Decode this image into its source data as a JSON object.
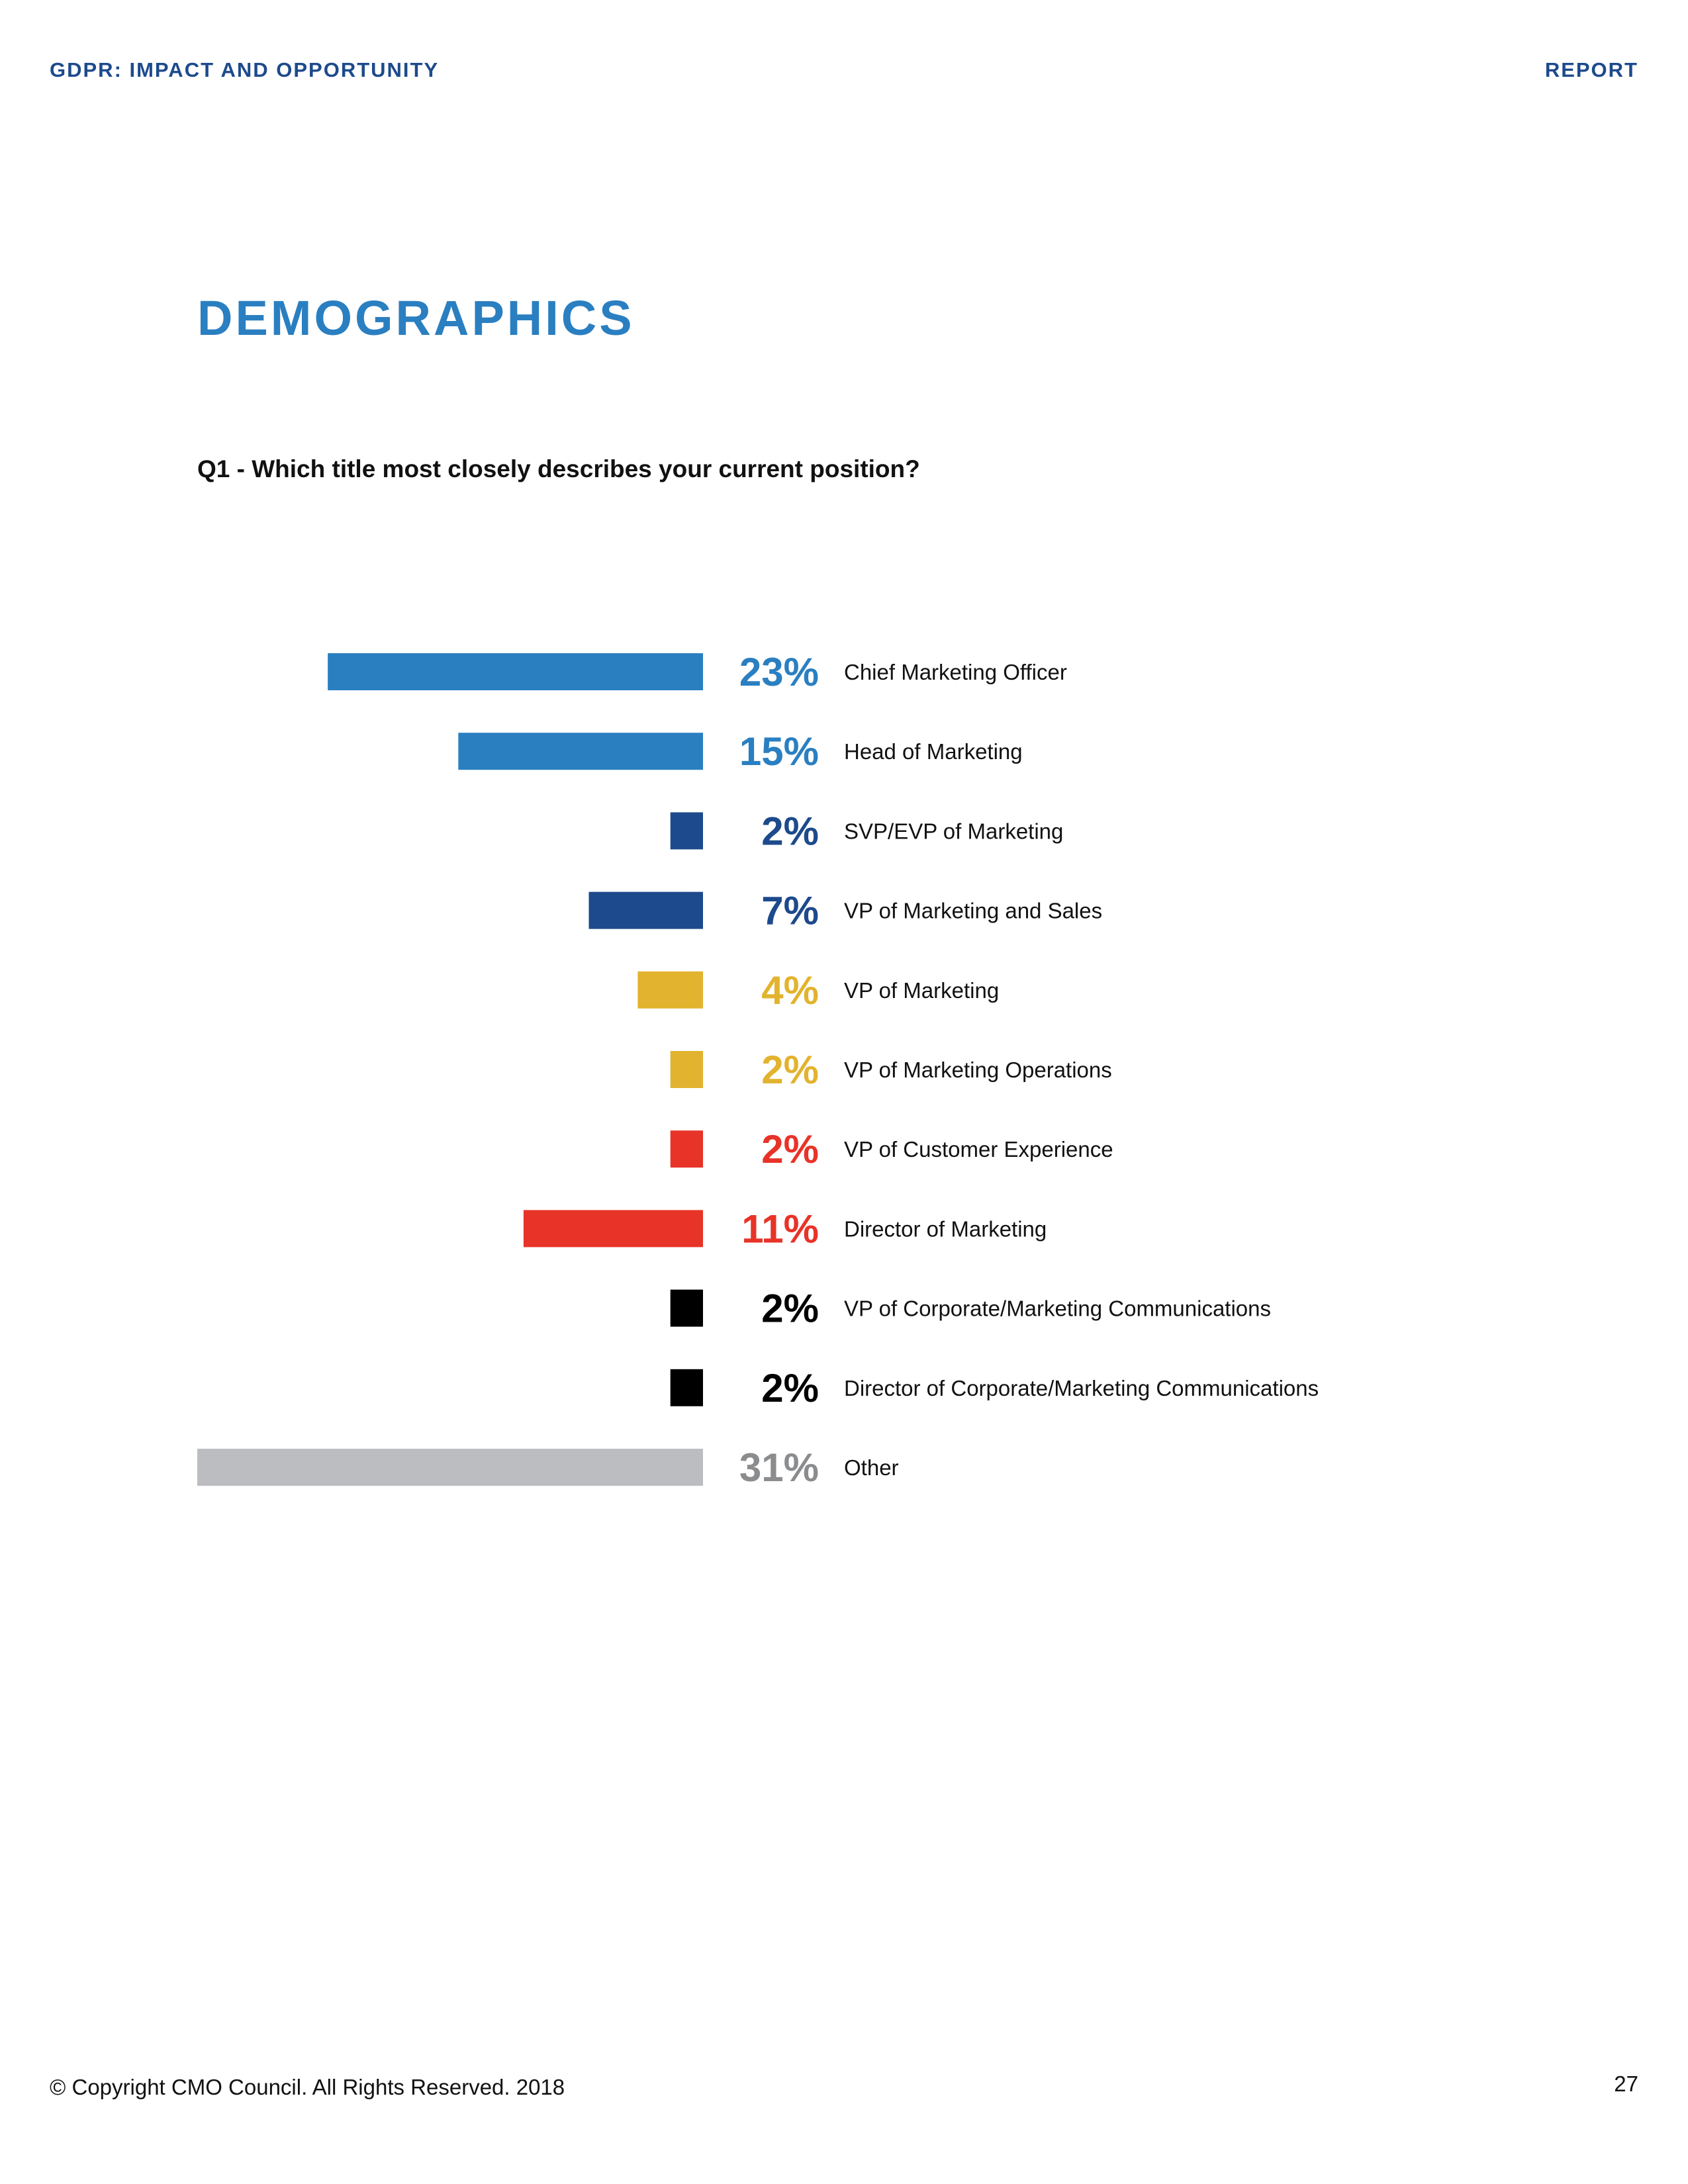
{
  "header": {
    "left": "GDPR: IMPACT AND OPPORTUNITY",
    "right": "REPORT"
  },
  "section_title": "DEMOGRAPHICS",
  "question": "Q1 - Which title most closely describes your current position?",
  "footer": {
    "copyright": "© Copyright CMO Council. All Rights Reserved. 2018",
    "page_number": "27"
  },
  "colors": {
    "light_blue": "#2a7fc1",
    "dark_blue": "#1d4a8c",
    "yellow": "#e2b32e",
    "red": "#e83328",
    "black": "#000000",
    "gray_bar": "#bcbdc0",
    "gray_text": "#8b8c8e"
  },
  "chart_data": {
    "type": "bar",
    "orientation": "horizontal",
    "title": "Q1 - Which title most closely describes your current position?",
    "unit": "%",
    "categories": [
      "Chief Marketing Officer",
      "Head of Marketing",
      "SVP/EVP of Marketing",
      "VP of Marketing and Sales",
      "VP of Marketing",
      "VP of Marketing Operations",
      "VP of Customer Experience",
      "Director of Marketing",
      "VP of Corporate/Marketing Communications",
      "Director of Corporate/Marketing Communications",
      "Other"
    ],
    "values": [
      23,
      15,
      2,
      7,
      4,
      2,
      2,
      11,
      2,
      2,
      31
    ],
    "value_labels": [
      "23%",
      "15%",
      "2%",
      "7%",
      "4%",
      "2%",
      "2%",
      "11%",
      "2%",
      "2%",
      "31%"
    ],
    "bar_colors": [
      "#2a7fc1",
      "#2a7fc1",
      "#1d4a8c",
      "#1d4a8c",
      "#e2b32e",
      "#e2b32e",
      "#e83328",
      "#e83328",
      "#000000",
      "#000000",
      "#bcbdc0"
    ],
    "label_colors": [
      "#2a7fc1",
      "#2a7fc1",
      "#1d4a8c",
      "#1d4a8c",
      "#e2b32e",
      "#e2b32e",
      "#e83328",
      "#e83328",
      "#000000",
      "#000000",
      "#8b8c8e"
    ],
    "xlim": [
      0,
      31
    ],
    "grid": false,
    "legend": "none"
  }
}
